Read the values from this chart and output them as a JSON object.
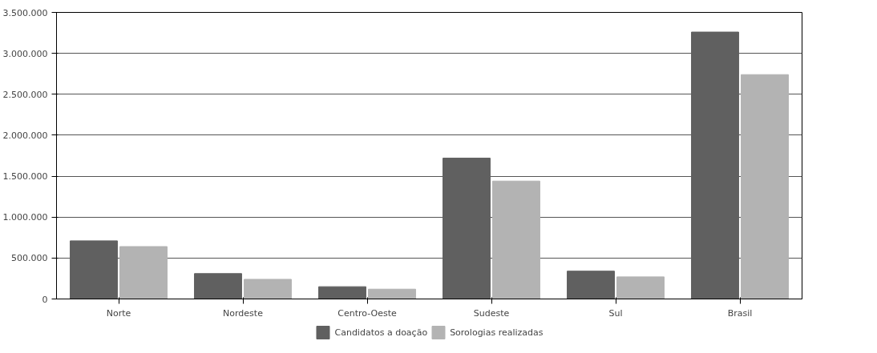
{
  "chart_data": {
    "type": "bar",
    "categories": [
      "Norte",
      "Nordeste",
      "Centro-Oeste",
      "Sudeste",
      "Sul",
      "Brasil"
    ],
    "series": [
      {
        "name": "Candidatos a doação",
        "color": "#606060",
        "values": [
          710000,
          310000,
          150000,
          1720000,
          340000,
          3260000
        ]
      },
      {
        "name": "Sorologias realizadas",
        "color": "#b3b3b3",
        "values": [
          640000,
          240000,
          120000,
          1440000,
          270000,
          2740000
        ]
      }
    ],
    "ylim": [
      0,
      3500000
    ],
    "yticks": [
      {
        "value": 0,
        "label": "0"
      },
      {
        "value": 500000,
        "label": "500.000"
      },
      {
        "value": 1000000,
        "label": "1.000.000"
      },
      {
        "value": 1500000,
        "label": "1.500.000"
      },
      {
        "value": 2000000,
        "label": "2.000.000"
      },
      {
        "value": 2500000,
        "label": "2.500.000"
      },
      {
        "value": 3000000,
        "label": "3.000.000"
      },
      {
        "value": 3500000,
        "label": "3.500.000"
      }
    ],
    "grid": "y",
    "legend": "bottom"
  }
}
